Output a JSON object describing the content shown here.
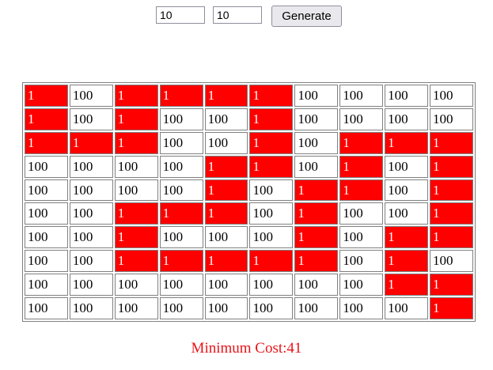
{
  "controls": {
    "rows_value": "10",
    "cols_value": "10",
    "generate_label": "Generate"
  },
  "grid": [
    [
      {
        "v": "1",
        "p": true
      },
      {
        "v": "100",
        "p": false
      },
      {
        "v": "1",
        "p": true
      },
      {
        "v": "1",
        "p": true
      },
      {
        "v": "1",
        "p": true
      },
      {
        "v": "1",
        "p": true
      },
      {
        "v": "100",
        "p": false
      },
      {
        "v": "100",
        "p": false
      },
      {
        "v": "100",
        "p": false
      },
      {
        "v": "100",
        "p": false
      }
    ],
    [
      {
        "v": "1",
        "p": true
      },
      {
        "v": "100",
        "p": false
      },
      {
        "v": "1",
        "p": true
      },
      {
        "v": "100",
        "p": false
      },
      {
        "v": "100",
        "p": false
      },
      {
        "v": "1",
        "p": true
      },
      {
        "v": "100",
        "p": false
      },
      {
        "v": "100",
        "p": false
      },
      {
        "v": "100",
        "p": false
      },
      {
        "v": "100",
        "p": false
      }
    ],
    [
      {
        "v": "1",
        "p": true
      },
      {
        "v": "1",
        "p": true
      },
      {
        "v": "1",
        "p": true
      },
      {
        "v": "100",
        "p": false
      },
      {
        "v": "100",
        "p": false
      },
      {
        "v": "1",
        "p": true
      },
      {
        "v": "100",
        "p": false
      },
      {
        "v": "1",
        "p": true
      },
      {
        "v": "1",
        "p": true
      },
      {
        "v": "1",
        "p": true
      }
    ],
    [
      {
        "v": "100",
        "p": false
      },
      {
        "v": "100",
        "p": false
      },
      {
        "v": "100",
        "p": false
      },
      {
        "v": "100",
        "p": false
      },
      {
        "v": "1",
        "p": true
      },
      {
        "v": "1",
        "p": true
      },
      {
        "v": "100",
        "p": false
      },
      {
        "v": "1",
        "p": true
      },
      {
        "v": "100",
        "p": false
      },
      {
        "v": "1",
        "p": true
      }
    ],
    [
      {
        "v": "100",
        "p": false
      },
      {
        "v": "100",
        "p": false
      },
      {
        "v": "100",
        "p": false
      },
      {
        "v": "100",
        "p": false
      },
      {
        "v": "1",
        "p": true
      },
      {
        "v": "100",
        "p": false
      },
      {
        "v": "1",
        "p": true
      },
      {
        "v": "1",
        "p": true
      },
      {
        "v": "100",
        "p": false
      },
      {
        "v": "1",
        "p": true
      }
    ],
    [
      {
        "v": "100",
        "p": false
      },
      {
        "v": "100",
        "p": false
      },
      {
        "v": "1",
        "p": true
      },
      {
        "v": "1",
        "p": true
      },
      {
        "v": "1",
        "p": true
      },
      {
        "v": "100",
        "p": false
      },
      {
        "v": "1",
        "p": true
      },
      {
        "v": "100",
        "p": false
      },
      {
        "v": "100",
        "p": false
      },
      {
        "v": "1",
        "p": true
      }
    ],
    [
      {
        "v": "100",
        "p": false
      },
      {
        "v": "100",
        "p": false
      },
      {
        "v": "1",
        "p": true
      },
      {
        "v": "100",
        "p": false
      },
      {
        "v": "100",
        "p": false
      },
      {
        "v": "100",
        "p": false
      },
      {
        "v": "1",
        "p": true
      },
      {
        "v": "100",
        "p": false
      },
      {
        "v": "1",
        "p": true
      },
      {
        "v": "1",
        "p": true
      }
    ],
    [
      {
        "v": "100",
        "p": false
      },
      {
        "v": "100",
        "p": false
      },
      {
        "v": "1",
        "p": true
      },
      {
        "v": "1",
        "p": true
      },
      {
        "v": "1",
        "p": true
      },
      {
        "v": "1",
        "p": true
      },
      {
        "v": "1",
        "p": true
      },
      {
        "v": "100",
        "p": false
      },
      {
        "v": "1",
        "p": true
      },
      {
        "v": "100",
        "p": false
      }
    ],
    [
      {
        "v": "100",
        "p": false
      },
      {
        "v": "100",
        "p": false
      },
      {
        "v": "100",
        "p": false
      },
      {
        "v": "100",
        "p": false
      },
      {
        "v": "100",
        "p": false
      },
      {
        "v": "100",
        "p": false
      },
      {
        "v": "100",
        "p": false
      },
      {
        "v": "100",
        "p": false
      },
      {
        "v": "1",
        "p": true
      },
      {
        "v": "1",
        "p": true
      }
    ],
    [
      {
        "v": "100",
        "p": false
      },
      {
        "v": "100",
        "p": false
      },
      {
        "v": "100",
        "p": false
      },
      {
        "v": "100",
        "p": false
      },
      {
        "v": "100",
        "p": false
      },
      {
        "v": "100",
        "p": false
      },
      {
        "v": "100",
        "p": false
      },
      {
        "v": "100",
        "p": false
      },
      {
        "v": "100",
        "p": false
      },
      {
        "v": "1",
        "p": true
      }
    ]
  ],
  "colors": {
    "path_cell": "#ff0000",
    "result_text": "#e8141a"
  },
  "result": {
    "label": "Minimum Cost:41"
  }
}
